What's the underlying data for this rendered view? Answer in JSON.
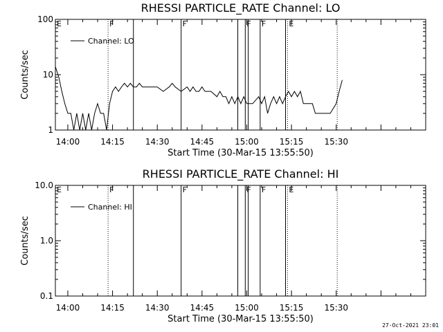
{
  "chart_data": [
    {
      "type": "line",
      "title": "RHESSI PARTICLE_RATE Channel: LO",
      "xlabel": "Start Time (30-Mar-15 13:55:50)",
      "ylabel": "Counts/sec",
      "yscale": "log",
      "ylim": [
        1,
        100
      ],
      "ytick_labels": [
        "1",
        "10",
        "100"
      ],
      "ytick_values": [
        1,
        10,
        100
      ],
      "xtick_labels": [
        "14:00",
        "14:15",
        "14:30",
        "14:45",
        "15:00",
        "15:15",
        "15:30"
      ],
      "xlim": [
        "13:55:50",
        "16:00:00"
      ],
      "grid": false,
      "legend_position": "top-left",
      "series": [
        {
          "name": "Channel: LO",
          "x": [
            "13:55:50",
            "13:57:00",
            "13:58:00",
            "13:59:00",
            "14:00:00",
            "14:01:00",
            "14:02:00",
            "14:03:00",
            "14:04:00",
            "14:05:00",
            "14:06:00",
            "14:07:00",
            "14:08:00",
            "14:09:00",
            "14:10:00",
            "14:11:00",
            "14:12:00",
            "14:13:00",
            "14:14:00",
            "14:15:00",
            "14:16:00",
            "14:17:00",
            "14:18:00",
            "14:19:00",
            "14:20:00",
            "14:21:00",
            "14:22:00",
            "14:23:00",
            "14:24:00",
            "14:25:00",
            "14:26:00",
            "14:28:00",
            "14:30:00",
            "14:32:00",
            "14:34:00",
            "14:35:00",
            "14:36:00",
            "14:38:00",
            "14:40:00",
            "14:41:00",
            "14:42:00",
            "14:43:00",
            "14:44:00",
            "14:45:00",
            "14:46:00",
            "14:48:00",
            "14:50:00",
            "14:51:00",
            "14:52:00",
            "14:53:00",
            "14:54:00",
            "14:55:00",
            "14:56:00",
            "14:57:00",
            "14:58:00",
            "14:59:00",
            "15:00:00",
            "15:02:00",
            "15:04:00",
            "15:05:00",
            "15:06:00",
            "15:07:00",
            "15:08:00",
            "15:09:00",
            "15:10:00",
            "15:11:00",
            "15:12:00",
            "15:13:00",
            "15:14:00",
            "15:15:00",
            "15:16:00",
            "15:17:00",
            "15:18:00",
            "15:19:00",
            "15:20:00",
            "15:22:00",
            "15:23:00",
            "15:24:00",
            "15:25:00",
            "15:26:00",
            "15:28:00",
            "15:30:00",
            "15:31:00",
            "15:32:00"
          ],
          "y": [
            14,
            9,
            5,
            3,
            2,
            2,
            1,
            2,
            1,
            2,
            1,
            2,
            1,
            2,
            3,
            2,
            2,
            1,
            3,
            5,
            6,
            5,
            6,
            7,
            6,
            7,
            6,
            6,
            7,
            6,
            6,
            6,
            6,
            5,
            6,
            7,
            6,
            5,
            6,
            5,
            6,
            5,
            5,
            6,
            5,
            5,
            4,
            5,
            4,
            4,
            3,
            4,
            3,
            4,
            3,
            4,
            3,
            3,
            4,
            3,
            4,
            2,
            3,
            4,
            3,
            4,
            3,
            4,
            5,
            4,
            5,
            4,
            5,
            3,
            3,
            3,
            2,
            2,
            2,
            2,
            2,
            3,
            5,
            8
          ]
        }
      ],
      "annotations": [
        {
          "text": "F",
          "x": "14:13:30",
          "line": "dotted"
        },
        {
          "text": "",
          "x": "14:22:00",
          "line": "solid"
        },
        {
          "text": "F",
          "x": "14:38:00",
          "line": "solid"
        },
        {
          "text": "",
          "x": "14:57:00",
          "line": "solid"
        },
        {
          "text": "F",
          "x": "14:59:30",
          "line": "solid"
        },
        {
          "text": "",
          "x": "15:00:30",
          "line": "solid"
        },
        {
          "text": "F",
          "x": "15:04:30",
          "line": "solid"
        },
        {
          "text": "",
          "x": "15:13:00",
          "line": "solid"
        },
        {
          "text": "E",
          "x": "15:13:40",
          "line": "dotted"
        },
        {
          "text": "",
          "x": "15:30:20",
          "line": "dotted"
        },
        {
          "text": "E",
          "x": "13:55:50",
          "line": "none"
        }
      ]
    },
    {
      "type": "line",
      "title": "RHESSI PARTICLE_RATE Channel: HI",
      "xlabel": "Start Time (30-Mar-15 13:55:50)",
      "ylabel": "Counts/sec",
      "yscale": "log",
      "ylim": [
        0.1,
        10
      ],
      "ytick_labels": [
        "0.1",
        "1.0",
        "10.0"
      ],
      "ytick_values": [
        0.1,
        1,
        10
      ],
      "xtick_labels": [
        "14:00",
        "14:15",
        "14:30",
        "14:45",
        "15:00",
        "15:15",
        "15:30"
      ],
      "xlim": [
        "13:55:50",
        "16:00:00"
      ],
      "grid": false,
      "legend_position": "top-left",
      "series": [
        {
          "name": "Channel: HI",
          "x": [],
          "y": []
        }
      ],
      "annotations": [
        {
          "text": "F",
          "x": "14:13:30",
          "line": "dotted"
        },
        {
          "text": "",
          "x": "14:22:00",
          "line": "solid"
        },
        {
          "text": "F",
          "x": "14:38:00",
          "line": "solid"
        },
        {
          "text": "",
          "x": "14:57:00",
          "line": "solid"
        },
        {
          "text": "F",
          "x": "14:59:30",
          "line": "solid"
        },
        {
          "text": "",
          "x": "15:00:30",
          "line": "solid"
        },
        {
          "text": "F",
          "x": "15:04:30",
          "line": "solid"
        },
        {
          "text": "",
          "x": "15:13:00",
          "line": "solid"
        },
        {
          "text": "E",
          "x": "15:13:40",
          "line": "dotted"
        },
        {
          "text": "",
          "x": "15:30:20",
          "line": "dotted"
        },
        {
          "text": "E",
          "x": "13:55:50",
          "line": "none"
        }
      ]
    }
  ],
  "timestamp": "27-Oct-2021 23:01"
}
